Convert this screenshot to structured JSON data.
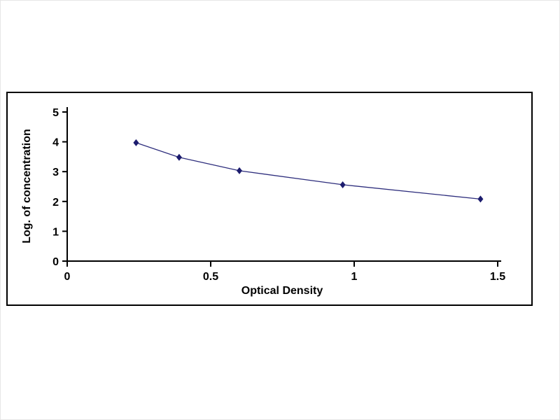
{
  "chart_data": {
    "type": "line",
    "x": [
      0.24,
      0.39,
      0.6,
      0.96,
      1.44
    ],
    "y": [
      3.97,
      3.48,
      3.03,
      2.56,
      2.08
    ],
    "title": "",
    "xlabel": "Optical Density",
    "ylabel": "Log. of concentration",
    "xlim": [
      0,
      1.5
    ],
    "ylim": [
      0,
      5
    ],
    "xticks": [
      0,
      0.5,
      1,
      1.5
    ],
    "xtick_labels": [
      "0",
      "0.5",
      "1",
      "1.5"
    ],
    "yticks": [
      0,
      1,
      2,
      3,
      4,
      5
    ],
    "ytick_labels": [
      "0",
      "1",
      "2",
      "3",
      "4",
      "5"
    ],
    "marker": "diamond",
    "grid": false,
    "legend_position": "none",
    "colors": {
      "line": "#2e2e7d",
      "marker": "#1c1c6e",
      "axis": "#000000"
    }
  }
}
